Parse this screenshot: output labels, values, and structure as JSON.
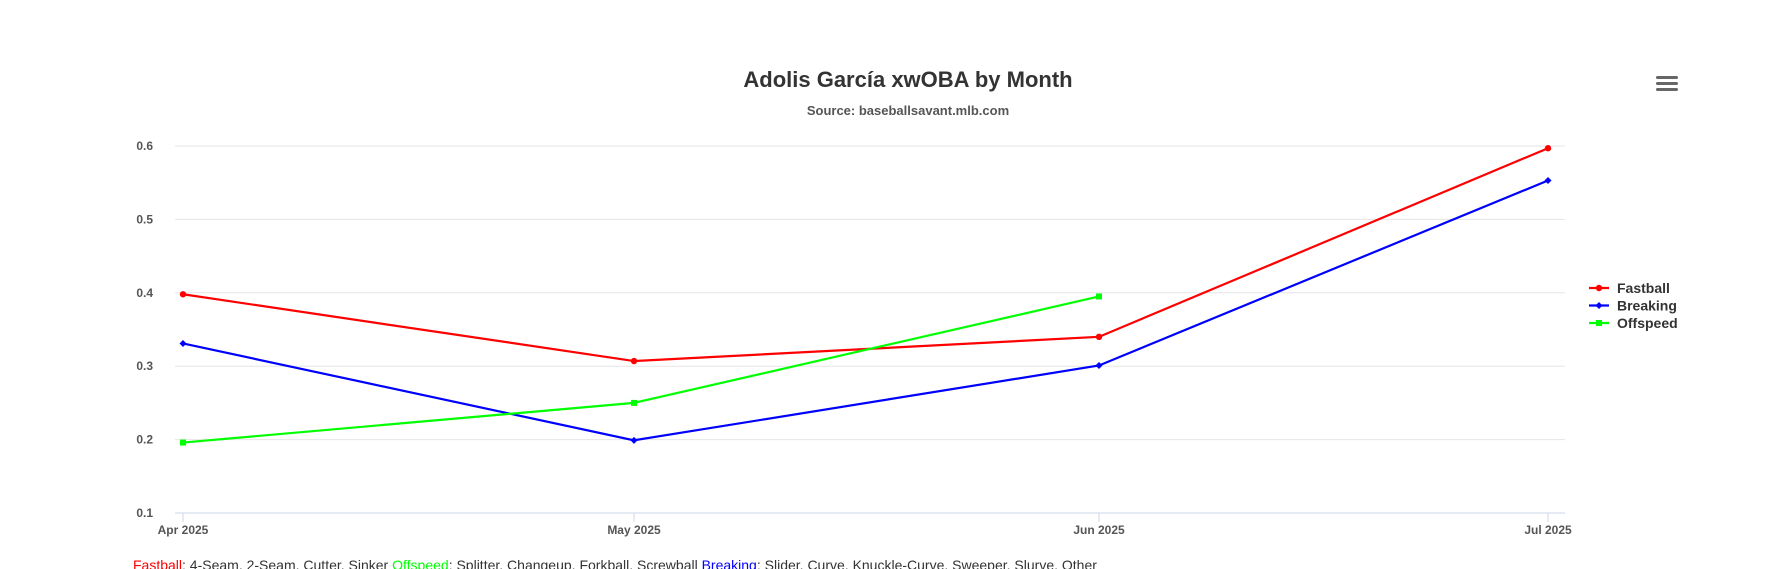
{
  "chart_data": {
    "type": "line",
    "title": "Adolis García xwOBA by Month",
    "subtitle": "Source: baseballsavant.mlb.com",
    "xlabel": "",
    "ylabel": "",
    "categories": [
      "Apr 2025",
      "May 2025",
      "Jun 2025",
      "Jul 2025"
    ],
    "y_ticks": [
      "0.1",
      "0.2",
      "0.3",
      "0.4",
      "0.5",
      "0.6"
    ],
    "ylim": [
      0.1,
      0.6
    ],
    "grid": true,
    "legend_position": "right",
    "series": [
      {
        "name": "Fastball",
        "color": "#ff0000",
        "values": [
          0.398,
          0.307,
          0.34,
          0.597
        ]
      },
      {
        "name": "Breaking",
        "color": "#0000ff",
        "values": [
          0.331,
          0.199,
          0.301,
          0.553
        ]
      },
      {
        "name": "Offspeed",
        "color": "#00ff00",
        "values": [
          0.196,
          0.25,
          0.395,
          null
        ]
      }
    ]
  },
  "menu_icon": "hamburger-menu-icon",
  "footnote": [
    {
      "text": "Fastball",
      "color": "#ff0000"
    },
    {
      "text": ": 4-Seam, 2-Seam, Cutter, Sinker",
      "color": "#333333"
    },
    {
      "text": "Offspeed",
      "color": "#00ff00"
    },
    {
      "text": ": Splitter, Changeup, Forkball, Screwball",
      "color": "#333333"
    },
    {
      "text": "Breaking",
      "color": "#0000ff"
    },
    {
      "text": ": Slider, Curve, Knuckle-Curve, Sweeper, Slurve, Other",
      "color": "#333333"
    }
  ]
}
